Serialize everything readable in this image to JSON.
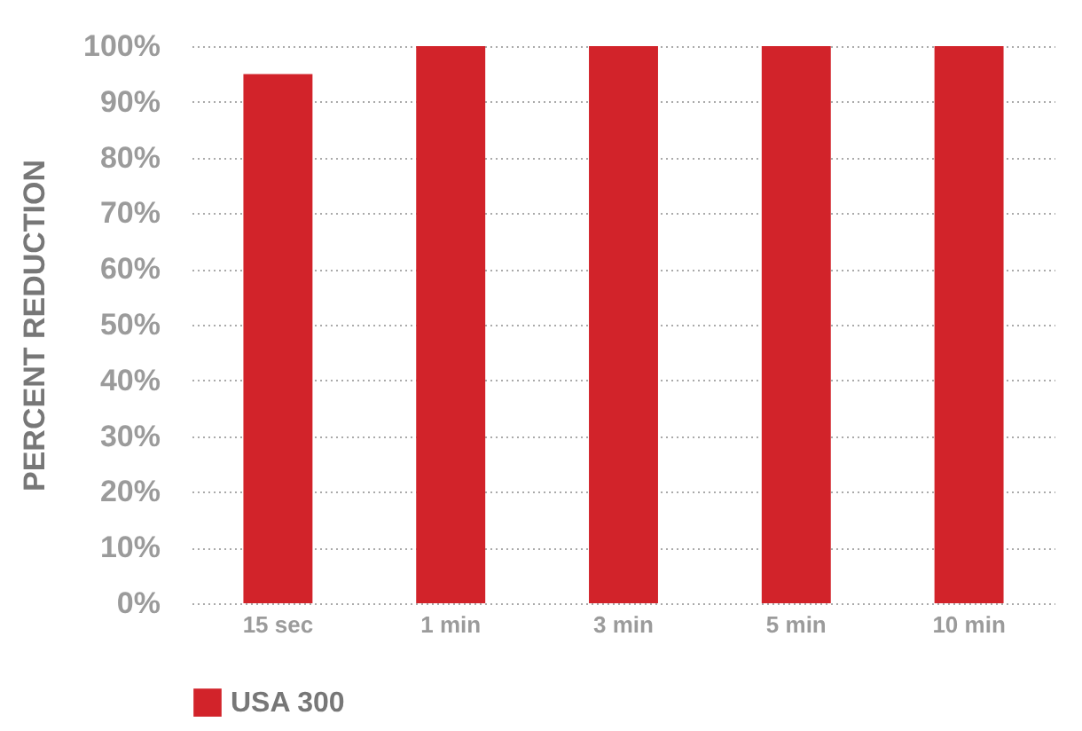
{
  "chart_data": {
    "type": "bar",
    "ylabel": "PERCENT REDUCTION",
    "categories": [
      "15 sec",
      "1 min",
      "3 min",
      "5 min",
      "10 min"
    ],
    "series": [
      {
        "name": "USA 300",
        "color": "#d2232a",
        "values": [
          95,
          100,
          100,
          100,
          100
        ]
      }
    ],
    "ylim": [
      0,
      100
    ],
    "yticks": [
      {
        "value": 0,
        "label": "0%"
      },
      {
        "value": 10,
        "label": "10%"
      },
      {
        "value": 20,
        "label": "20%"
      },
      {
        "value": 30,
        "label": "30%"
      },
      {
        "value": 40,
        "label": "40%"
      },
      {
        "value": 50,
        "label": "50%"
      },
      {
        "value": 60,
        "label": "60%"
      },
      {
        "value": 70,
        "label": "70%"
      },
      {
        "value": 80,
        "label": "80%"
      },
      {
        "value": 90,
        "label": "90%"
      },
      {
        "value": 100,
        "label": "100%"
      }
    ],
    "grid": "y",
    "legend": "bottom"
  }
}
